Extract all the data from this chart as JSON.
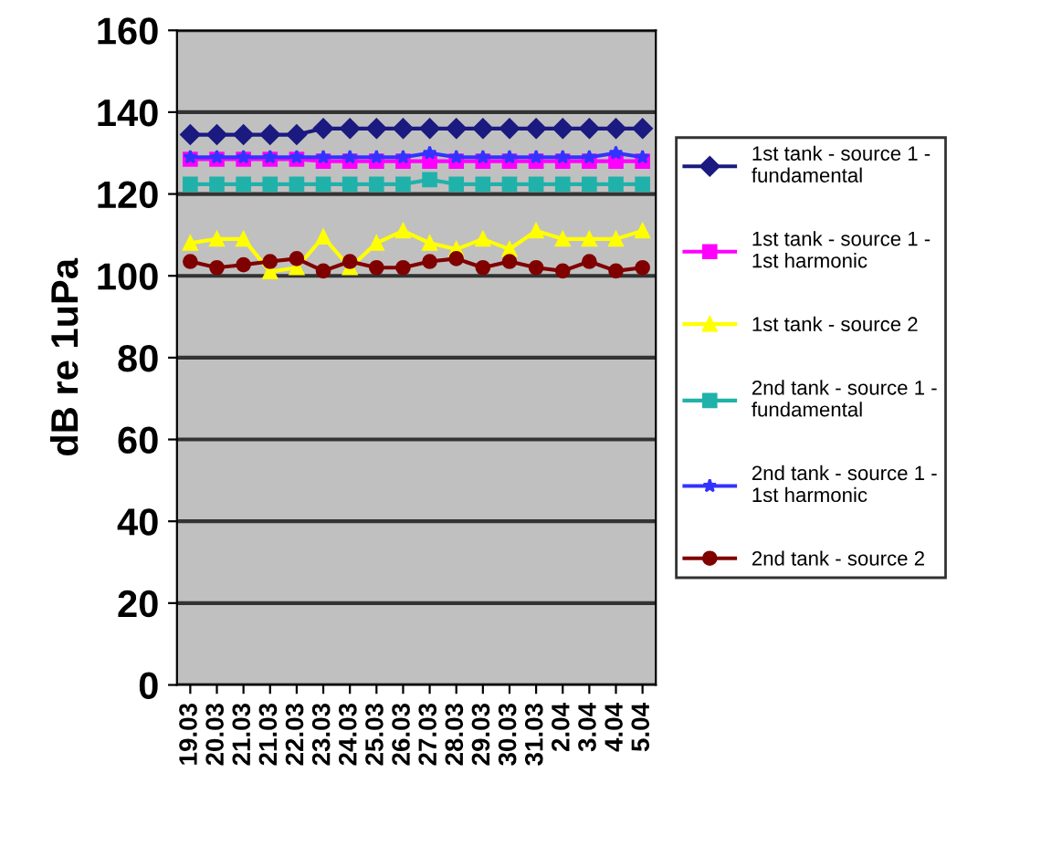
{
  "chart_data": {
    "type": "line",
    "ylabel": "dB re 1uPa",
    "categories": [
      "19.03",
      "20.03",
      "21.03",
      "21.03",
      "22.03",
      "23.03",
      "24.03",
      "25.03",
      "26.03",
      "27.03",
      "28.03",
      "29.03",
      "30.03",
      "31.03",
      "2.04",
      "3.04",
      "4.04",
      "5.04"
    ],
    "series": [
      {
        "name": "1st tank - source 1 - fundamental",
        "color": "#1a1a80",
        "marker": "diamond",
        "values": [
          134.5,
          134.5,
          134.5,
          134.5,
          134.5,
          136,
          136,
          136,
          136,
          136,
          136,
          136,
          136,
          136,
          136,
          136,
          136,
          136
        ]
      },
      {
        "name": "1st tank - source 1 - 1st harmonic",
        "color": "#ff00ff",
        "marker": "square",
        "values": [
          128.5,
          128.5,
          128.5,
          128.5,
          128.5,
          128,
          128,
          128,
          128,
          128,
          128,
          128,
          128,
          128,
          128,
          128,
          128,
          128
        ]
      },
      {
        "name": "1st tank - source 2",
        "color": "#ffff00",
        "marker": "triangle",
        "values": [
          108,
          109,
          109,
          101,
          102,
          109.5,
          102,
          108,
          111,
          108,
          106.5,
          109,
          106.5,
          111,
          109,
          109,
          109,
          111
        ]
      },
      {
        "name": "2nd tank - source 1 - fundamental",
        "color": "#20b2aa",
        "marker": "square",
        "values": [
          122.4,
          122.4,
          122.4,
          122.4,
          122.4,
          122.4,
          122.4,
          122.4,
          122.4,
          123.5,
          122.4,
          122.4,
          122.4,
          122.4,
          122.4,
          122.4,
          122.4,
          122.4
        ]
      },
      {
        "name": "2nd tank - source 1 - 1st harmonic",
        "color": "#3333ff",
        "marker": "star",
        "values": [
          129,
          129,
          129,
          129,
          129,
          129,
          129,
          129,
          129,
          130,
          129,
          129,
          129,
          129,
          129,
          129,
          130,
          129
        ]
      },
      {
        "name": "2nd tank - source 2",
        "color": "#800000",
        "marker": "circle",
        "values": [
          103.5,
          102,
          102.7,
          103.5,
          104.2,
          101.2,
          103.5,
          102,
          102,
          103.5,
          104.2,
          102,
          103.5,
          102,
          101.2,
          103.5,
          101.2,
          102
        ]
      }
    ],
    "ylim": [
      0,
      160
    ],
    "yticks": [
      0,
      20,
      40,
      60,
      80,
      100,
      120,
      140,
      160
    ],
    "grid": "y",
    "legend": "right"
  }
}
